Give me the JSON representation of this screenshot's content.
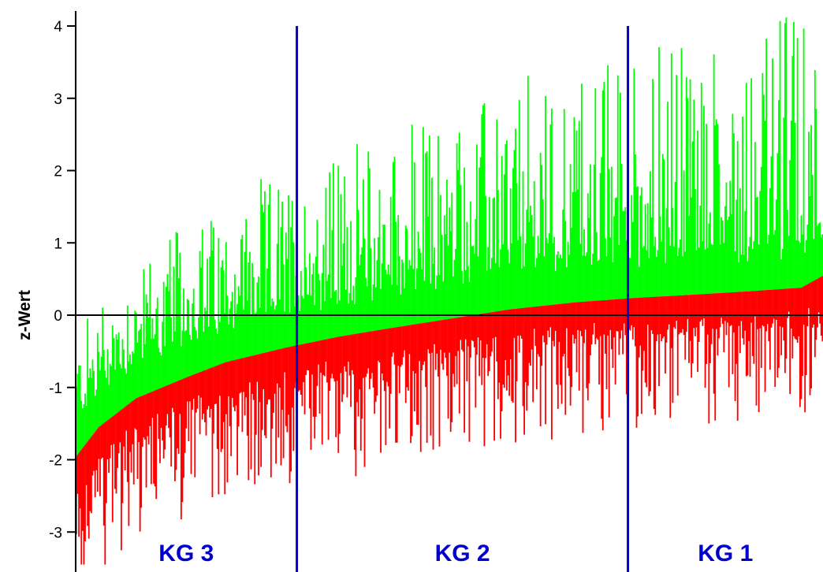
{
  "chart_data": {
    "type": "bar",
    "ylabel": "z-Wert",
    "xlabel": "",
    "ylim": [
      -3.45,
      4.2
    ],
    "y_ticks": [
      -3,
      -2,
      -1,
      0,
      1,
      2,
      3,
      4
    ],
    "y_tick_labels": [
      "-3",
      "-2",
      "-1",
      "0",
      "1",
      "2",
      "3",
      "4"
    ],
    "x_axis": "ranked items (sorted by median z-value)",
    "item_count": 600,
    "series": [
      {
        "role": "upper whisker (max z per item)",
        "color": "#00ff00"
      },
      {
        "role": "lower whisker (min z per item)",
        "color": "#ff0000"
      }
    ],
    "median_curve": {
      "x_fraction": [
        0.0,
        0.03,
        0.08,
        0.15,
        0.2,
        0.28,
        0.35,
        0.42,
        0.5,
        0.58,
        0.67,
        0.75,
        0.82,
        0.9,
        0.97,
        1.0
      ],
      "z": [
        -1.95,
        -1.55,
        -1.15,
        -0.85,
        -0.65,
        -0.45,
        -0.3,
        -0.18,
        -0.05,
        0.08,
        0.18,
        0.24,
        0.28,
        0.33,
        0.38,
        0.55
      ]
    },
    "group_boundaries_x_fraction": [
      0.296,
      0.739
    ],
    "group_boundary_color": "#0000cc",
    "zero_line_color": "#000000",
    "groups": [
      {
        "label": "KG 3",
        "color": "#0000cc"
      },
      {
        "label": "KG 2",
        "color": "#0000cc"
      },
      {
        "label": "KG 1",
        "color": "#0000cc"
      }
    ]
  }
}
